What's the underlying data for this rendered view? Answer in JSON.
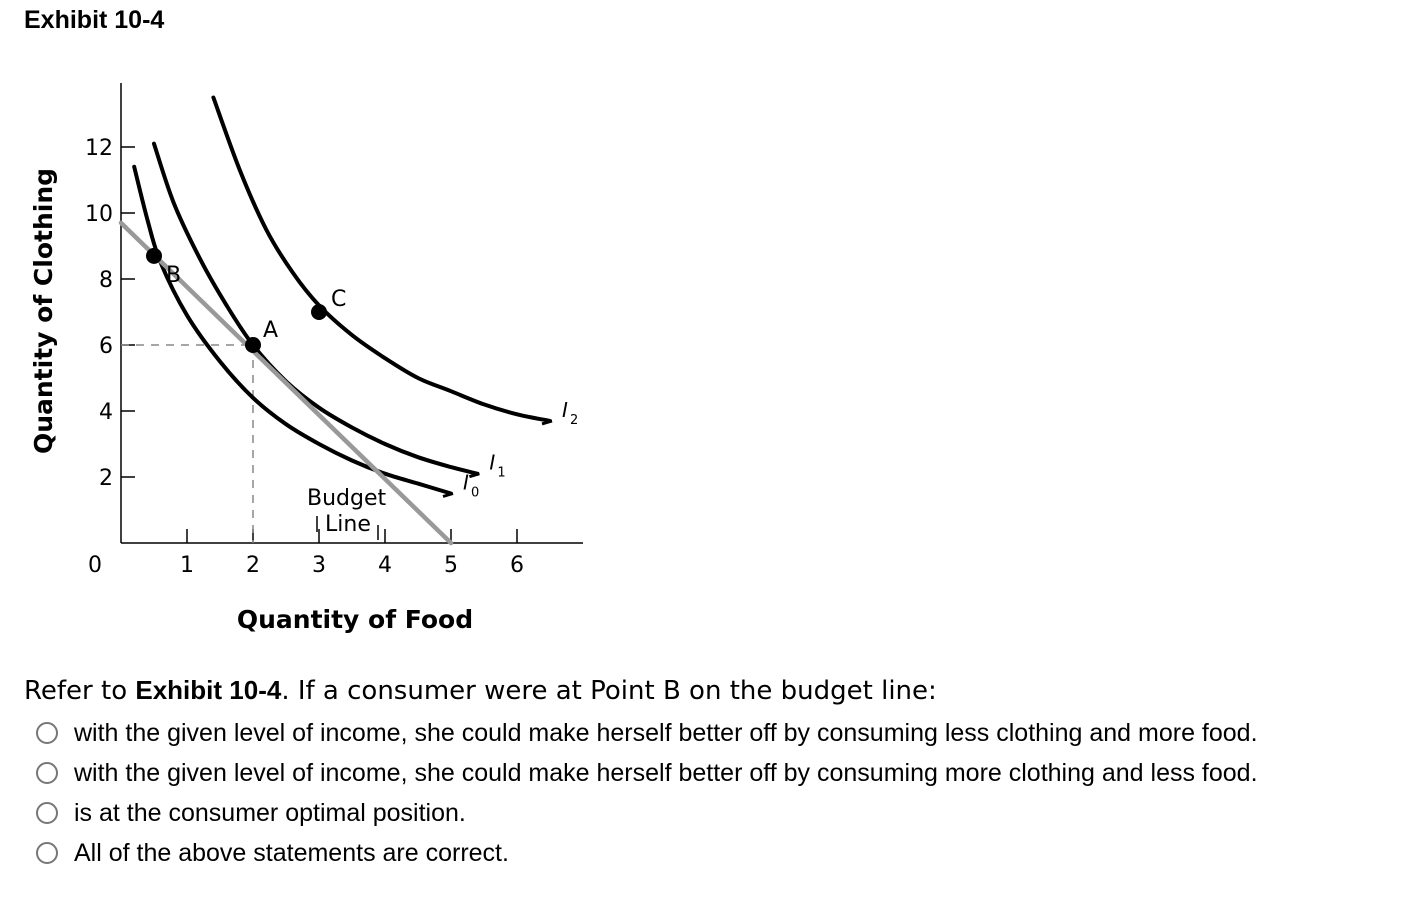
{
  "exhibit_title": "Exhibit 10-4",
  "question": {
    "prefix": "Refer to ",
    "bold": "Exhibit 10-4",
    "suffix": ". If a consumer were at Point B on the budget line:"
  },
  "options": [
    {
      "label": "with the given level of income, she could make herself better off by consuming less clothing and more food."
    },
    {
      "label": "with the given level of income, she could make herself better off by consuming more clothing and less food."
    },
    {
      "label": "is at the consumer optimal position."
    },
    {
      "label": "All of the above statements are correct."
    }
  ],
  "chart_data": {
    "type": "line",
    "xlabel": "Quantity of Food",
    "ylabel": "Quantity of Clothing",
    "origin_label": "0",
    "xticks": [
      1,
      2,
      3,
      4,
      5,
      6
    ],
    "yticks": [
      2,
      4,
      6,
      8,
      10,
      12
    ],
    "xlim": [
      0,
      7
    ],
    "ylim": [
      0,
      14
    ],
    "series": [
      {
        "name": "I0",
        "label_main": "I",
        "label_sub": "0",
        "color": "#000000",
        "x": [
          0.2,
          0.4,
          0.6,
          1.0,
          1.5,
          2.0,
          2.5,
          3.0,
          3.5,
          4.0,
          4.5,
          5.0
        ],
        "y": [
          11.4,
          9.8,
          8.5,
          6.9,
          5.5,
          4.4,
          3.6,
          3.0,
          2.5,
          2.1,
          1.8,
          1.5
        ]
      },
      {
        "name": "I1",
        "label_main": "I",
        "label_sub": "1",
        "color": "#000000",
        "x": [
          0.5,
          0.8,
          1.2,
          1.6,
          2.0,
          2.5,
          3.0,
          3.5,
          4.0,
          4.5,
          5.0,
          5.4
        ],
        "y": [
          12.1,
          10.3,
          8.6,
          7.2,
          6.0,
          4.9,
          4.1,
          3.5,
          3.0,
          2.6,
          2.3,
          2.1
        ]
      },
      {
        "name": "I2",
        "label_main": "I",
        "label_sub": "2",
        "color": "#000000",
        "x": [
          1.4,
          1.8,
          2.2,
          2.6,
          3.0,
          3.5,
          4.0,
          4.5,
          5.0,
          5.5,
          6.0,
          6.5
        ],
        "y": [
          13.5,
          11.3,
          9.5,
          8.2,
          7.2,
          6.3,
          5.6,
          5.0,
          4.6,
          4.2,
          3.9,
          3.7
        ]
      },
      {
        "name": "Budget Line",
        "label_main": "Budget",
        "label_line2": "Line",
        "color": "#999999",
        "x": [
          0,
          5
        ],
        "y": [
          9.7,
          0
        ]
      }
    ],
    "points": [
      {
        "label": "A",
        "x": 2,
        "y": 6
      },
      {
        "label": "B",
        "x": 0.5,
        "y": 8.7
      },
      {
        "label": "C",
        "x": 3.0,
        "y": 7.0
      }
    ],
    "guide": {
      "x": 2,
      "y": 6
    }
  }
}
